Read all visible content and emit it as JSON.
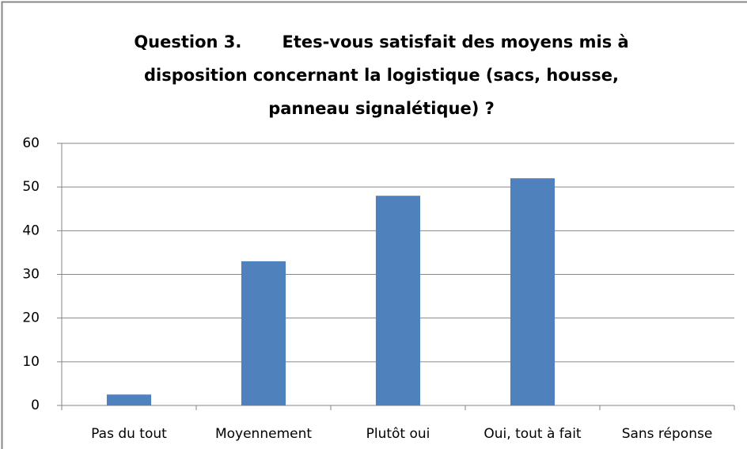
{
  "chart_data": {
    "type": "bar",
    "title": [
      "Question 3.       Etes-vous satisfait des moyens mis à",
      "disposition concernant la logistique (sacs, housse,",
      "panneau signalétique) ?"
    ],
    "categories": [
      "Pas du tout",
      "Moyennement",
      "Plutôt oui",
      "Oui, tout à fait",
      "Sans réponse"
    ],
    "values": [
      2.5,
      33,
      48,
      52,
      0
    ],
    "color": "#4f81bd",
    "ylim": [
      0,
      60
    ],
    "yticks": [
      0,
      10,
      20,
      30,
      40,
      50,
      60
    ],
    "grid": true
  }
}
